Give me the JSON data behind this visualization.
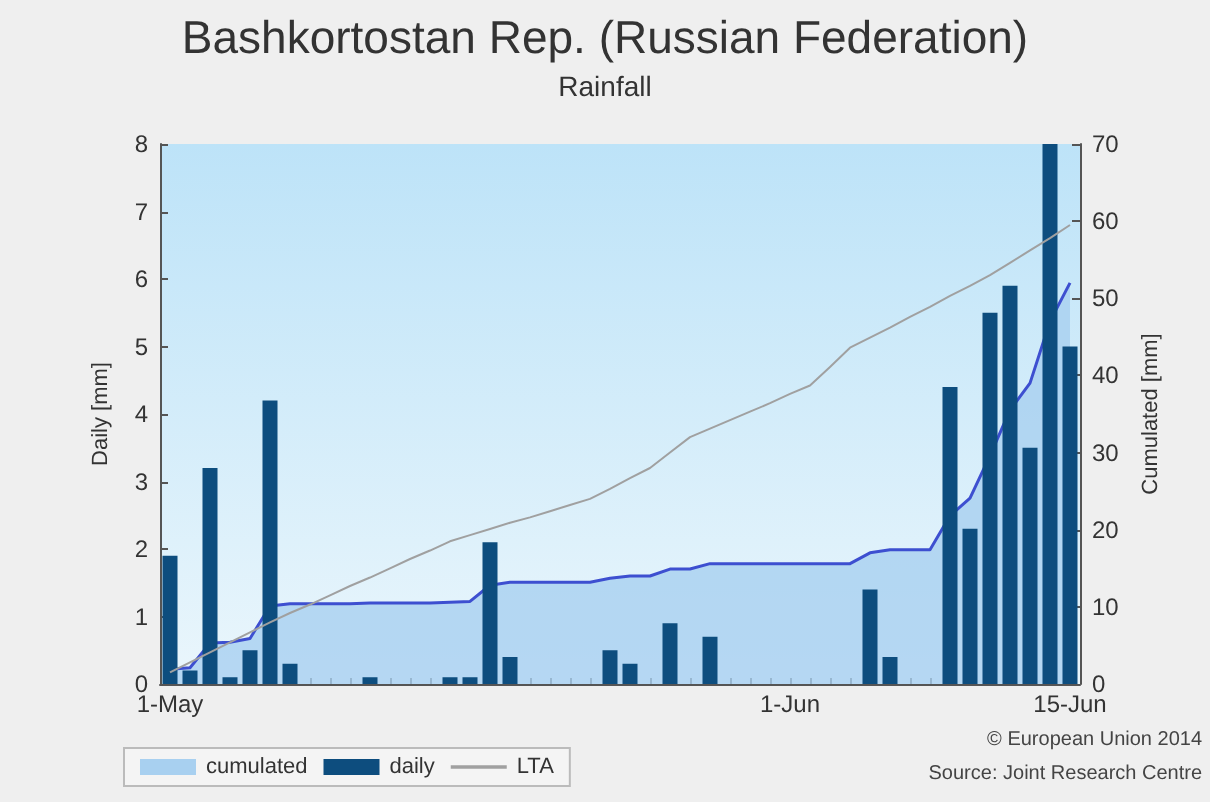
{
  "chart_data": {
    "type": "bar",
    "title": "Bashkortostan Rep. (Russian Federation)",
    "subtitle": "Rainfall",
    "ylabel": "Daily [mm]",
    "y2label": "Cumulated [mm]",
    "categories": [
      "1-May",
      null,
      null,
      null,
      null,
      null,
      null,
      null,
      null,
      null,
      null,
      null,
      null,
      null,
      null,
      null,
      null,
      null,
      null,
      null,
      null,
      null,
      null,
      null,
      null,
      null,
      null,
      null,
      null,
      null,
      null,
      "1-Jun",
      null,
      null,
      null,
      null,
      null,
      null,
      null,
      null,
      null,
      null,
      null,
      null,
      null,
      "15-Jun"
    ],
    "series": [
      {
        "name": "cumulated",
        "type": "area",
        "axis": "y2",
        "color": "#3d4fd0",
        "values": [
          1.9,
          2.1,
          5.3,
          5.4,
          5.9,
          10.1,
          10.4,
          10.4,
          10.4,
          10.4,
          10.5,
          10.5,
          10.5,
          10.5,
          10.6,
          10.7,
          12.8,
          13.2,
          13.2,
          13.2,
          13.2,
          13.2,
          13.7,
          14.0,
          14.0,
          14.9,
          14.9,
          15.6,
          15.6,
          15.6,
          15.6,
          15.6,
          15.6,
          15.6,
          15.6,
          17.0,
          17.4,
          17.4,
          17.4,
          21.8,
          24.1,
          29.6,
          35.5,
          39.0,
          47.0,
          52.0
        ]
      },
      {
        "name": "daily",
        "color": "#0d4d7e",
        "values": [
          1.9,
          0.2,
          3.2,
          0.1,
          0.5,
          4.2,
          0.3,
          0,
          0,
          0,
          0.1,
          0,
          0,
          0,
          0.1,
          0.1,
          2.1,
          0.4,
          0,
          0,
          0,
          0,
          0.5,
          0.3,
          0,
          0.9,
          0,
          0.7,
          0,
          0,
          0,
          0,
          0,
          0,
          0,
          1.4,
          0.4,
          0,
          0,
          4.4,
          2.3,
          5.5,
          5.9,
          3.5,
          8,
          5.0
        ]
      },
      {
        "name": "LTA",
        "type": "line",
        "axis": "y2",
        "color": "#a0a0a0",
        "values": [
          1.5,
          2.8,
          4.1,
          5.4,
          6.7,
          8.0,
          9.2,
          10.3,
          11.5,
          12.7,
          13.8,
          15.0,
          16.2,
          17.3,
          18.5,
          19.3,
          20.1,
          20.9,
          21.6,
          22.4,
          23.2,
          24.0,
          25.3,
          26.7,
          28.0,
          30.0,
          32.0,
          33.1,
          34.2,
          35.3,
          36.4,
          37.6,
          38.7,
          41.1,
          43.6,
          44.9,
          46.2,
          47.6,
          48.9,
          50.3,
          51.6,
          53.0,
          54.6,
          56.2,
          57.8,
          59.5
        ]
      }
    ],
    "ylim": [
      0,
      8
    ],
    "yticks": [
      0,
      1,
      2,
      3,
      4,
      5,
      6,
      7,
      8
    ],
    "y2lim": [
      0,
      70
    ],
    "y2ticks": [
      0,
      10,
      20,
      30,
      40,
      50,
      60,
      70
    ],
    "legend": "bottom left",
    "grid": false,
    "marker": "none",
    "annotations": [
      "© European Union 2014",
      "Source: Joint Research Centre"
    ]
  }
}
